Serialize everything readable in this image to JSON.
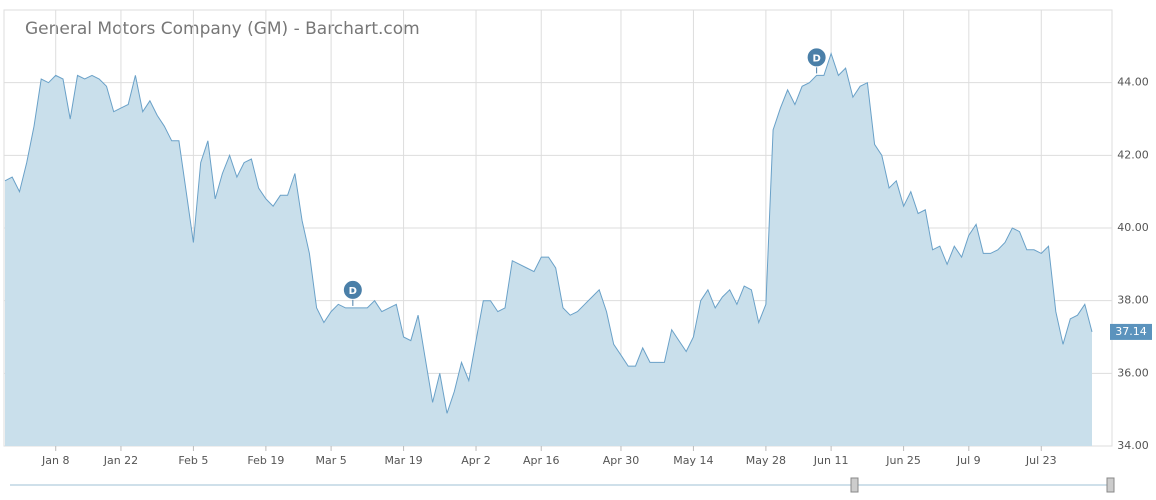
{
  "chart_data": {
    "type": "area",
    "title": "General Motors Company (GM) - Barchart.com",
    "categories": [
      null,
      null,
      null,
      null,
      null,
      null,
      null,
      "Jan 8",
      null,
      null,
      null,
      null,
      null,
      null,
      null,
      null,
      "Jan 22",
      null,
      null,
      null,
      null,
      null,
      null,
      null,
      null,
      null,
      "Feb 5",
      null,
      null,
      null,
      null,
      null,
      null,
      null,
      null,
      null,
      "Feb 19",
      null,
      null,
      null,
      null,
      null,
      null,
      null,
      null,
      "Mar 5",
      null,
      null,
      null,
      null,
      null,
      null,
      null,
      null,
      null,
      "Mar 19",
      null,
      null,
      null,
      null,
      null,
      null,
      null,
      null,
      null,
      "Apr 2",
      null,
      null,
      null,
      null,
      null,
      null,
      null,
      null,
      "Apr 16",
      null,
      null,
      null,
      null,
      null,
      null,
      null,
      null,
      null,
      null,
      "Apr 30",
      null,
      null,
      null,
      null,
      null,
      null,
      null,
      null,
      null,
      "May 14",
      null,
      null,
      null,
      null,
      null,
      null,
      null,
      null,
      null,
      "May 28",
      null,
      null,
      null,
      null,
      null,
      null,
      null,
      null,
      "Jun 11",
      null,
      null,
      null,
      null,
      null,
      null,
      null,
      null,
      null,
      "Jun 25",
      null,
      null,
      null,
      null,
      null,
      null,
      null,
      null,
      "Jul 9",
      null,
      null,
      null,
      null,
      null,
      null,
      null,
      null,
      null,
      "Jul 23",
      null,
      null,
      null,
      null,
      null,
      null,
      null
    ],
    "values": [
      41.3,
      41.4,
      41.0,
      41.8,
      42.8,
      44.1,
      44.0,
      44.2,
      44.1,
      43.0,
      44.2,
      44.1,
      44.2,
      44.1,
      43.9,
      43.2,
      43.3,
      43.4,
      44.2,
      43.2,
      43.5,
      43.1,
      42.8,
      42.4,
      42.4,
      41.0,
      39.6,
      41.8,
      42.4,
      40.8,
      41.5,
      42.0,
      41.4,
      41.8,
      41.9,
      41.1,
      40.8,
      40.6,
      40.9,
      40.9,
      41.5,
      40.2,
      39.3,
      37.8,
      37.4,
      37.7,
      37.9,
      37.8,
      37.8,
      37.8,
      37.8,
      38.0,
      37.7,
      37.8,
      37.9,
      37.0,
      36.9,
      37.6,
      36.4,
      35.2,
      36.0,
      34.9,
      35.5,
      36.3,
      35.8,
      36.9,
      38.0,
      38.0,
      37.7,
      37.8,
      39.1,
      39.0,
      38.9,
      38.8,
      39.2,
      39.2,
      38.9,
      37.8,
      37.6,
      37.7,
      37.9,
      38.1,
      38.3,
      37.7,
      36.8,
      36.5,
      36.2,
      36.2,
      36.7,
      36.3,
      36.3,
      36.3,
      37.2,
      36.9,
      36.6,
      37.0,
      38.0,
      38.3,
      37.8,
      38.1,
      38.3,
      37.9,
      38.4,
      38.3,
      37.4,
      37.9,
      42.7,
      43.3,
      43.8,
      43.4,
      43.9,
      44.0,
      44.2,
      44.2,
      44.8,
      44.2,
      44.4,
      43.6,
      43.9,
      44.0,
      42.3,
      42.0,
      41.1,
      41.3,
      40.6,
      41.0,
      40.4,
      40.5,
      39.4,
      39.5,
      39.0,
      39.5,
      39.2,
      39.8,
      40.1,
      39.3,
      39.3,
      39.4,
      39.6,
      40.0,
      39.9,
      39.4,
      39.4,
      39.3,
      39.5,
      37.7,
      36.8,
      37.5,
      37.6,
      37.9,
      37.14
    ],
    "color": "#6aa1c8",
    "fill": "#c9dfeb",
    "annotations": [
      "D",
      "D"
    ],
    "ylim": [
      34,
      46
    ],
    "yticks": [
      {
        "value": 34,
        "label": "34.00"
      },
      {
        "value": 36,
        "label": "36.00"
      },
      {
        "value": 38,
        "label": "38.00"
      },
      {
        "value": 40,
        "label": "40.00"
      },
      {
        "value": 42,
        "label": "42.00"
      },
      {
        "value": 44,
        "label": "44.00"
      }
    ],
    "grid": true
  }
}
